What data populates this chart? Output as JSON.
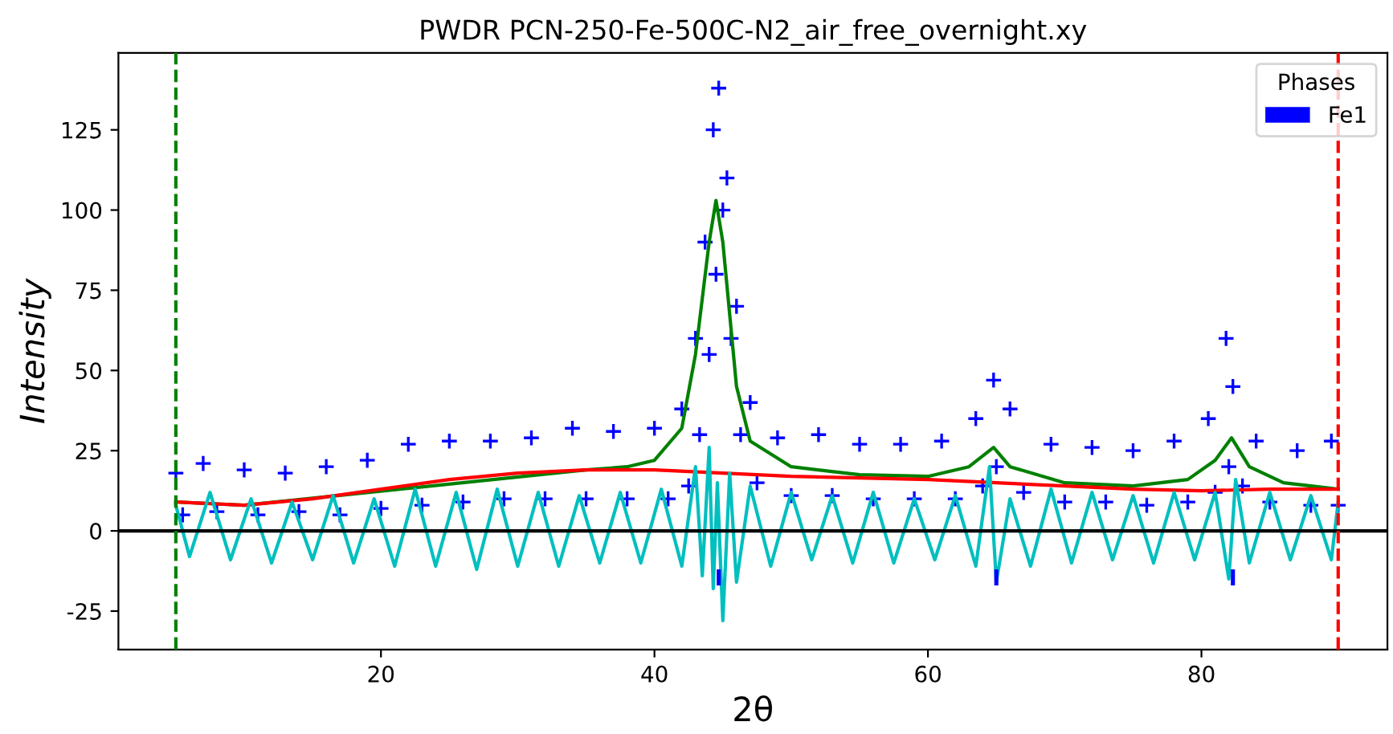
{
  "chart_data": {
    "type": "scatter",
    "title": "PWDR PCN-250-Fe-500C-N2_air_free_overnight.xy",
    "xlabel": "2θ",
    "ylabel": "Intensity",
    "legend_title": "Phases",
    "legend": "top right",
    "grid": false,
    "xlim": [
      0.8,
      93.6
    ],
    "xticks": [
      20,
      40,
      60,
      80
    ],
    "ylim": [
      -37,
      149
    ],
    "yticks": [
      -25,
      0,
      25,
      50,
      75,
      100,
      125
    ],
    "ref_lines": [
      {
        "axis": "y",
        "value": 0,
        "color": "#000000",
        "line_style": "solid"
      },
      {
        "axis": "x",
        "value": 5,
        "color": "#008000",
        "line_style": "dashed"
      },
      {
        "axis": "x",
        "value": 90,
        "color": "#ff0000",
        "line_style": "dashed"
      }
    ],
    "series": [
      {
        "marker": "cross",
        "color": "#0000ff",
        "x": [
          5,
          5.5,
          7,
          8,
          10,
          11,
          13,
          14,
          16,
          17,
          19,
          20,
          22,
          23,
          25,
          26,
          28,
          29,
          31,
          32,
          34,
          35,
          37,
          38,
          40,
          41,
          42,
          42.5,
          43,
          43.3,
          43.7,
          44,
          44.3,
          44.5,
          44.7,
          45,
          45.3,
          45.6,
          46,
          46.3,
          47,
          47.5,
          49,
          50,
          52,
          53,
          55,
          56,
          58,
          59,
          61,
          62,
          63.5,
          64,
          64.8,
          65,
          66,
          67,
          69,
          70,
          72,
          73,
          75,
          76,
          78,
          79,
          80.5,
          81,
          81.8,
          82,
          82.3,
          83,
          84,
          85,
          87,
          88,
          89.5,
          90
        ],
        "values": [
          18,
          5,
          21,
          6,
          19,
          5,
          18,
          6,
          20,
          5,
          22,
          7,
          27,
          8,
          28,
          9,
          28,
          10,
          29,
          10,
          32,
          10,
          31,
          10,
          32,
          10,
          38,
          14,
          60,
          30,
          90,
          55,
          125,
          80,
          138,
          100,
          110,
          60,
          70,
          30,
          40,
          15,
          29,
          11,
          30,
          11,
          27,
          10,
          27,
          10,
          28,
          10,
          35,
          14,
          47,
          20,
          38,
          12,
          27,
          9,
          26,
          9,
          25,
          8,
          28,
          9,
          35,
          12,
          60,
          20,
          45,
          14,
          28,
          9,
          25,
          8,
          28,
          8
        ]
      },
      {
        "type": "line",
        "marker": "none",
        "line_style": "solid",
        "color": "#008000",
        "x": [
          5,
          10,
          35,
          38,
          40,
          42,
          43,
          44,
          44.5,
          45,
          46,
          47,
          50,
          55,
          60,
          63,
          64.8,
          66,
          70,
          75,
          79,
          81,
          82.2,
          83.5,
          86,
          90
        ],
        "values": [
          9,
          8,
          19,
          20,
          22,
          32,
          55,
          90,
          103,
          90,
          45,
          28,
          20,
          17.5,
          17,
          20,
          26,
          20,
          15,
          14,
          16,
          22,
          29,
          20,
          15,
          13
        ]
      },
      {
        "type": "line",
        "marker": "none",
        "line_style": "solid",
        "color": "#ff0000",
        "x": [
          5,
          10,
          15,
          20,
          25,
          30,
          35,
          40,
          45,
          50,
          55,
          60,
          65,
          70,
          75,
          80,
          85,
          90
        ],
        "values": [
          9,
          8,
          10,
          13,
          16,
          18,
          19,
          19,
          18,
          17,
          16.5,
          16,
          15,
          14,
          13,
          12.5,
          13,
          13
        ]
      },
      {
        "type": "line",
        "marker": "none",
        "line_style": "solid",
        "color": "#00bfbf",
        "x": [
          5,
          6,
          7.5,
          9,
          10.5,
          12,
          13.5,
          15,
          16.5,
          18,
          19.5,
          21,
          22.5,
          24,
          25.5,
          27,
          28.5,
          30,
          31.5,
          33,
          34.5,
          36,
          37.5,
          39,
          40.5,
          42,
          43,
          43.5,
          44,
          44.3,
          44.6,
          45,
          45.5,
          46,
          47,
          48.5,
          50,
          51.5,
          53,
          54.5,
          56,
          57.5,
          59,
          60.5,
          62,
          63.5,
          64.5,
          65,
          66,
          67.5,
          69,
          70.5,
          72,
          73.5,
          75,
          76.5,
          78,
          79.5,
          81,
          82,
          82.5,
          83.5,
          85,
          86.5,
          88,
          89.5,
          90
        ],
        "values": [
          8,
          -8,
          12,
          -9,
          10,
          -10,
          9,
          -9,
          11,
          -10,
          10,
          -11,
          13,
          -11,
          12,
          -12,
          13,
          -11,
          12,
          -11,
          11,
          -10,
          12,
          -10,
          13,
          -11,
          20,
          -14,
          26,
          -18,
          15,
          -28,
          18,
          -16,
          14,
          -11,
          12,
          -9,
          11,
          -10,
          12,
          -10,
          10,
          -9,
          11,
          -11,
          20,
          -16,
          10,
          -11,
          13,
          -10,
          12,
          -9,
          11,
          -10,
          12,
          -9,
          12,
          -15,
          16,
          -10,
          12,
          -9,
          11,
          -9,
          9
        ]
      },
      {
        "type": "bar",
        "name": "Fe1",
        "color": "#0000ff",
        "x": [
          44.7,
          65.0,
          82.3
        ],
        "base": [
          -17,
          -17,
          -17
        ],
        "values": [
          5,
          5,
          5
        ]
      }
    ]
  }
}
